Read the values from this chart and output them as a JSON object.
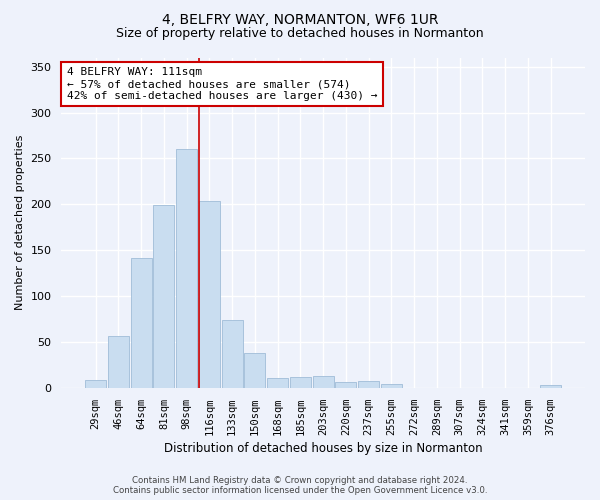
{
  "title": "4, BELFRY WAY, NORMANTON, WF6 1UR",
  "subtitle": "Size of property relative to detached houses in Normanton",
  "xlabel": "Distribution of detached houses by size in Normanton",
  "ylabel": "Number of detached properties",
  "categories": [
    "29sqm",
    "46sqm",
    "64sqm",
    "81sqm",
    "98sqm",
    "116sqm",
    "133sqm",
    "150sqm",
    "168sqm",
    "185sqm",
    "203sqm",
    "220sqm",
    "237sqm",
    "255sqm",
    "272sqm",
    "289sqm",
    "307sqm",
    "324sqm",
    "341sqm",
    "359sqm",
    "376sqm"
  ],
  "values": [
    8,
    57,
    142,
    199,
    260,
    204,
    74,
    38,
    11,
    12,
    13,
    6,
    7,
    4,
    0,
    0,
    0,
    0,
    0,
    0,
    3
  ],
  "bar_color": "#c9ddf0",
  "bar_edge_color": "#a0bcd8",
  "background_color": "#eef2fb",
  "grid_color": "#ffffff",
  "vline_color": "#cc0000",
  "vline_x_index": 5,
  "annotation_line1": "4 BELFRY WAY: 111sqm",
  "annotation_line2": "← 57% of detached houses are smaller (574)",
  "annotation_line3": "42% of semi-detached houses are larger (430) →",
  "annotation_box_color": "#ffffff",
  "annotation_box_edge": "#cc0000",
  "ylim": [
    0,
    360
  ],
  "yticks": [
    0,
    50,
    100,
    150,
    200,
    250,
    300,
    350
  ],
  "title_fontsize": 10,
  "subtitle_fontsize": 9,
  "footer_line1": "Contains HM Land Registry data © Crown copyright and database right 2024.",
  "footer_line2": "Contains public sector information licensed under the Open Government Licence v3.0."
}
